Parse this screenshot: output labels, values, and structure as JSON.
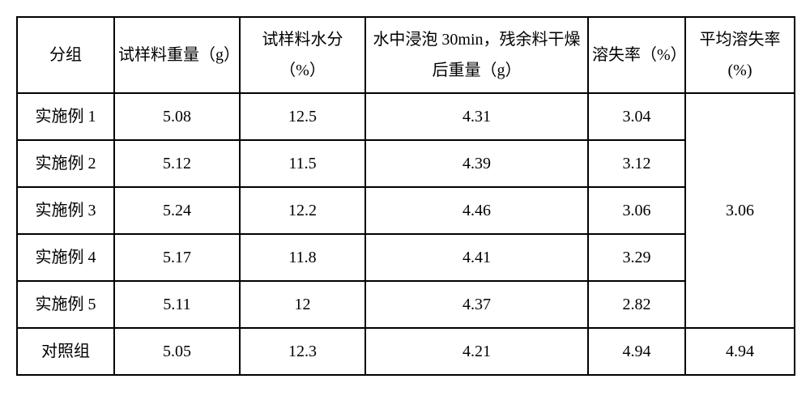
{
  "table": {
    "headers": {
      "group": "分组",
      "sample_weight": "试样料重量（g）",
      "sample_moisture": "试样料水分（%）",
      "soak_weight": "水中浸泡 30min，残余料干燥后重量（g）",
      "loss_rate": "溶失率（%）",
      "avg_loss_rate": "平均溶失率(%)"
    },
    "rows": [
      {
        "group": "实施例 1",
        "sample_weight": "5.08",
        "sample_moisture": "12.5",
        "soak_weight": "4.31",
        "loss_rate": "3.04"
      },
      {
        "group": "实施例 2",
        "sample_weight": "5.12",
        "sample_moisture": "11.5",
        "soak_weight": "4.39",
        "loss_rate": "3.12"
      },
      {
        "group": "实施例 3",
        "sample_weight": "5.24",
        "sample_moisture": "12.2",
        "soak_weight": "4.46",
        "loss_rate": "3.06"
      },
      {
        "group": "实施例 4",
        "sample_weight": "5.17",
        "sample_moisture": "11.8",
        "soak_weight": "4.41",
        "loss_rate": "3.29"
      },
      {
        "group": "实施例 5",
        "sample_weight": "5.11",
        "sample_moisture": "12",
        "soak_weight": "4.37",
        "loss_rate": "2.82"
      }
    ],
    "avg_loss_value": "3.06",
    "control_row": {
      "group": "对照组",
      "sample_weight": "5.05",
      "sample_moisture": "12.3",
      "soak_weight": "4.21",
      "loss_rate": "4.94",
      "avg_loss": "4.94"
    }
  }
}
